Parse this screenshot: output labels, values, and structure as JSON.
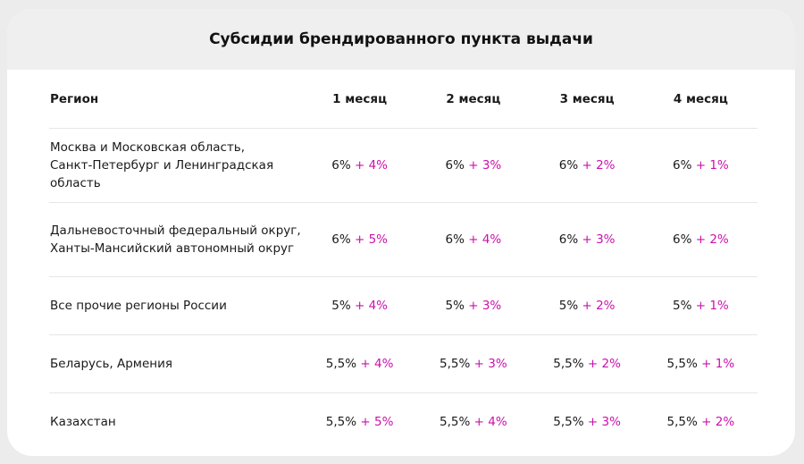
{
  "header": {
    "title": "Субсидии брендированного пункта выдачи"
  },
  "table": {
    "columns": [
      "Регион",
      "1 месяц",
      "2 месяц",
      "3 месяц",
      "4 месяц"
    ],
    "rows": [
      {
        "region": [
          "Москва и Московская область,",
          "Санкт-Петербург и Ленинградская область"
        ],
        "cells": [
          {
            "base": "6%",
            "bonus": "+ 4%"
          },
          {
            "base": "6%",
            "bonus": "+ 3%"
          },
          {
            "base": "6%",
            "bonus": "+ 2%"
          },
          {
            "base": "6%",
            "bonus": "+ 1%"
          }
        ]
      },
      {
        "region": [
          "Дальневосточный федеральный округ,",
          "Ханты-Мансийский автономный округ"
        ],
        "cells": [
          {
            "base": "6%",
            "bonus": "+ 5%"
          },
          {
            "base": "6%",
            "bonus": "+ 4%"
          },
          {
            "base": "6%",
            "bonus": "+ 3%"
          },
          {
            "base": "6%",
            "bonus": "+ 2%"
          }
        ]
      },
      {
        "region": [
          "Все прочие регионы России"
        ],
        "cells": [
          {
            "base": "5%",
            "bonus": "+ 4%"
          },
          {
            "base": "5%",
            "bonus": "+ 3%"
          },
          {
            "base": "5%",
            "bonus": "+ 2%"
          },
          {
            "base": "5%",
            "bonus": "+ 1%"
          }
        ]
      },
      {
        "region": [
          "Беларусь, Армения"
        ],
        "cells": [
          {
            "base": "5,5%",
            "bonus": "+ 4%"
          },
          {
            "base": "5,5%",
            "bonus": "+ 3%"
          },
          {
            "base": "5,5%",
            "bonus": "+ 2%"
          },
          {
            "base": "5,5%",
            "bonus": "+ 1%"
          }
        ]
      },
      {
        "region": [
          "Казахстан"
        ],
        "cells": [
          {
            "base": "5,5%",
            "bonus": "+ 5%"
          },
          {
            "base": "5,5%",
            "bonus": "+ 4%"
          },
          {
            "base": "5,5%",
            "bonus": "+ 3%"
          },
          {
            "base": "5,5%",
            "bonus": "+ 2%"
          }
        ]
      }
    ]
  }
}
